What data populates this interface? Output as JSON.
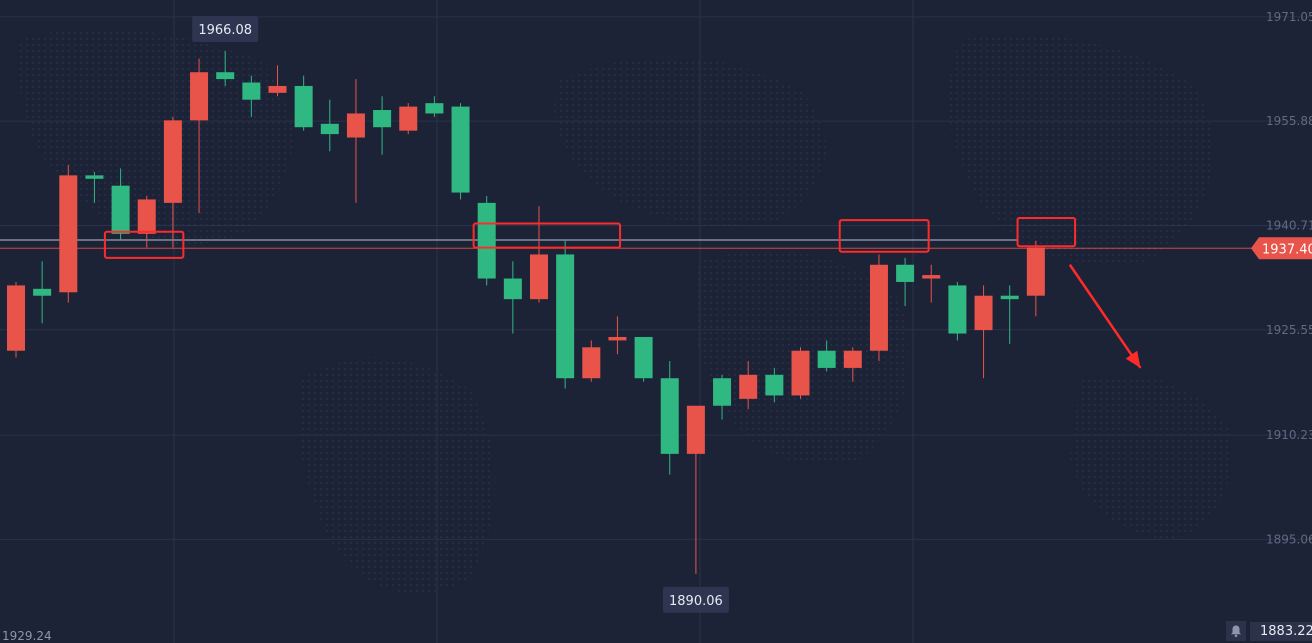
{
  "chart_data": {
    "type": "candlestick",
    "y_axis": {
      "ticks": [
        "1971.05",
        "1955.88",
        "1940.71",
        "1925.55",
        "1910.23",
        "1895.06"
      ],
      "range": [
        1880.0,
        1973.5
      ]
    },
    "current_price": {
      "label": "1937.40",
      "value": 1937.4,
      "color": "#e8534a"
    },
    "reference_line": 1938.6,
    "high_marker": {
      "label": "1966.08",
      "value": 1966.08,
      "index": 8
    },
    "low_marker": {
      "label": "1890.06",
      "value": 1890.06,
      "index": 26
    },
    "footer_left_label": "1929.24",
    "footer_right_price": "1883.22",
    "colors": {
      "background": "#1d2336",
      "up": "#2fb882",
      "down": "#e8534a",
      "grid": "#2b3249",
      "annotation": "#ff2b2b"
    },
    "candles": [
      {
        "open": 1932.0,
        "close": 1922.5,
        "high": 1932.5,
        "low": 1921.5
      },
      {
        "open": 1930.5,
        "close": 1931.5,
        "high": 1935.5,
        "low": 1926.5
      },
      {
        "open": 1948.0,
        "close": 1931.0,
        "high": 1949.5,
        "low": 1929.5
      },
      {
        "open": 1947.5,
        "close": 1948.0,
        "high": 1948.5,
        "low": 1944.0
      },
      {
        "open": 1939.5,
        "close": 1946.5,
        "high": 1949.0,
        "low": 1938.5
      },
      {
        "open": 1944.5,
        "close": 1939.5,
        "high": 1945.0,
        "low": 1937.5
      },
      {
        "open": 1956.0,
        "close": 1944.0,
        "high": 1956.5,
        "low": 1937.5
      },
      {
        "open": 1963.0,
        "close": 1956.0,
        "high": 1965.0,
        "low": 1942.5
      },
      {
        "open": 1962.0,
        "close": 1963.0,
        "high": 1966.08,
        "low": 1961.0
      },
      {
        "open": 1959.0,
        "close": 1961.5,
        "high": 1962.5,
        "low": 1956.5
      },
      {
        "open": 1961.0,
        "close": 1960.0,
        "high": 1964.0,
        "low": 1959.5
      },
      {
        "open": 1955.0,
        "close": 1961.0,
        "high": 1962.5,
        "low": 1954.5
      },
      {
        "open": 1954.0,
        "close": 1955.5,
        "high": 1959.0,
        "low": 1951.5
      },
      {
        "open": 1957.0,
        "close": 1953.5,
        "high": 1962.0,
        "low": 1944.0
      },
      {
        "open": 1955.0,
        "close": 1957.5,
        "high": 1959.5,
        "low": 1951.0
      },
      {
        "open": 1958.0,
        "close": 1954.5,
        "high": 1958.5,
        "low": 1954.0
      },
      {
        "open": 1957.0,
        "close": 1958.5,
        "high": 1959.5,
        "low": 1956.5
      },
      {
        "open": 1945.5,
        "close": 1958.0,
        "high": 1958.5,
        "low": 1944.5
      },
      {
        "open": 1933.0,
        "close": 1944.0,
        "high": 1945.0,
        "low": 1932.0
      },
      {
        "open": 1930.0,
        "close": 1933.0,
        "high": 1935.5,
        "low": 1925.0
      },
      {
        "open": 1936.5,
        "close": 1930.0,
        "high": 1943.5,
        "low": 1929.5
      },
      {
        "open": 1918.5,
        "close": 1936.5,
        "high": 1938.5,
        "low": 1917.0
      },
      {
        "open": 1923.0,
        "close": 1918.5,
        "high": 1924.0,
        "low": 1918.0
      },
      {
        "open": 1924.5,
        "close": 1924.0,
        "high": 1927.5,
        "low": 1922.0
      },
      {
        "open": 1918.5,
        "close": 1924.5,
        "high": 1924.5,
        "low": 1918.0
      },
      {
        "open": 1907.5,
        "close": 1918.5,
        "high": 1921.0,
        "low": 1904.5
      },
      {
        "open": 1914.5,
        "close": 1907.5,
        "high": 1914.5,
        "low": 1890.06
      },
      {
        "open": 1914.5,
        "close": 1918.5,
        "high": 1919.0,
        "low": 1912.5
      },
      {
        "open": 1919.0,
        "close": 1915.5,
        "high": 1921.0,
        "low": 1914.0
      },
      {
        "open": 1916.0,
        "close": 1919.0,
        "high": 1920.0,
        "low": 1915.0
      },
      {
        "open": 1922.5,
        "close": 1916.0,
        "high": 1923.0,
        "low": 1915.5
      },
      {
        "open": 1920.0,
        "close": 1922.5,
        "high": 1924.0,
        "low": 1919.5
      },
      {
        "open": 1922.5,
        "close": 1920.0,
        "high": 1923.0,
        "low": 1918.0
      },
      {
        "open": 1935.0,
        "close": 1922.5,
        "high": 1936.5,
        "low": 1921.0
      },
      {
        "open": 1932.5,
        "close": 1935.0,
        "high": 1936.0,
        "low": 1929.0
      },
      {
        "open": 1933.5,
        "close": 1933.0,
        "high": 1935.0,
        "low": 1929.5
      },
      {
        "open": 1925.0,
        "close": 1932.0,
        "high": 1932.5,
        "low": 1924.0
      },
      {
        "open": 1930.5,
        "close": 1925.5,
        "high": 1932.0,
        "low": 1918.5
      },
      {
        "open": 1930.0,
        "close": 1930.5,
        "high": 1932.0,
        "low": 1923.5
      },
      {
        "open": 1937.5,
        "close": 1930.5,
        "high": 1938.5,
        "low": 1927.5
      }
    ],
    "annotations": {
      "boxes": [
        {
          "from_index": 3.4,
          "to_index": 6.4,
          "top": 1939.8,
          "bottom": 1936.0
        },
        {
          "from_index": 17.5,
          "to_index": 23.1,
          "top": 1941.0,
          "bottom": 1937.5
        },
        {
          "from_index": 31.5,
          "to_index": 34.9,
          "top": 1941.5,
          "bottom": 1936.9
        },
        {
          "from_index": 38.3,
          "to_index": 40.5,
          "top": 1941.8,
          "bottom": 1937.7
        }
      ],
      "arrow": {
        "from_index": 40.3,
        "from_value": 1935.0,
        "to_index": 43.0,
        "to_value": 1920.0
      }
    }
  }
}
